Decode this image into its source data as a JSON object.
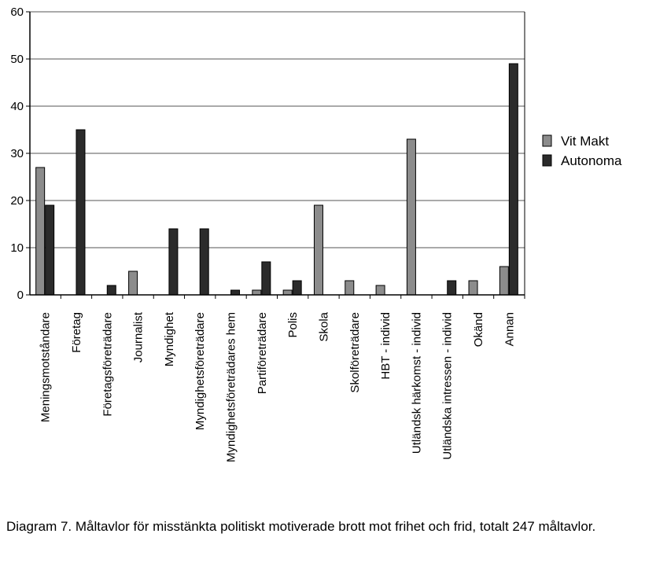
{
  "chart_data": {
    "type": "bar",
    "categories": [
      "Meningsmotståndare",
      "Företag",
      "Företagsföreträdare",
      "Journalist",
      "Myndighet",
      "Myndighetsföreträdare",
      "Myndighetsföreträdares hem",
      "Partiföreträdare",
      "Polis",
      "Skola",
      "Skolföreträdare",
      "HBT - individ",
      "Utländsk härkomst - individ",
      "Utländska intressen - individ",
      "Okänd",
      "Annan"
    ],
    "series": [
      {
        "name": "Vit Makt",
        "color": "#8c8c8c",
        "values": [
          27,
          0,
          0,
          5,
          0,
          0,
          0,
          1,
          1,
          19,
          3,
          2,
          33,
          0,
          3,
          6
        ]
      },
      {
        "name": "Autonoma",
        "color": "#2b2b2b",
        "values": [
          19,
          35,
          2,
          0,
          14,
          14,
          1,
          7,
          3,
          0,
          0,
          0,
          0,
          3,
          0,
          49
        ]
      }
    ],
    "yticks": [
      0,
      10,
      20,
      30,
      40,
      50,
      60
    ],
    "ylim": [
      0,
      60
    ],
    "legend_position": "right",
    "grid": true
  },
  "caption": "Diagram 7. Måltavlor för misstänkta politiskt motiverade brott mot frihet och frid, totalt 247 måltavlor."
}
